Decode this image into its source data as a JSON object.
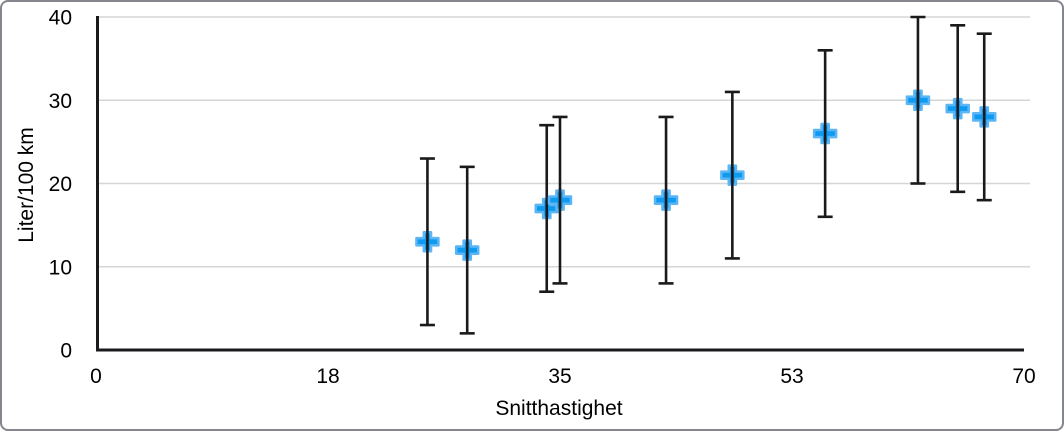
{
  "figure": {
    "background": "#ffffff",
    "border_color": "#85858d"
  },
  "chart_data": {
    "type": "scatter",
    "title": "",
    "xlabel": "Snitthastighet",
    "ylabel": "Liter/100 km",
    "xlim": [
      0,
      70
    ],
    "ylim": [
      0,
      40
    ],
    "x_tick_values": [
      0,
      17.5,
      35,
      52.5,
      70
    ],
    "x_tick_labels": [
      "0",
      "18",
      "35",
      "53",
      "70"
    ],
    "y_tick_values": [
      0,
      10,
      20,
      30,
      40
    ],
    "y_tick_labels": [
      "0",
      "10",
      "20",
      "30",
      "40"
    ],
    "grid": true,
    "legend": "none",
    "colors": {
      "gridline": "#d6d6d6",
      "axis_line": "#1a1a1c",
      "error_bar": "#1a1a1c",
      "marker_fill": "#0f9af1",
      "marker_halo": "#5cb6f5",
      "text": "#000000"
    },
    "series": [
      {
        "name": "Liter/100 km",
        "marker": "plus",
        "error_bars": {
          "type": "fixed",
          "plus": 10,
          "minus": 10
        },
        "points": [
          {
            "x": 25,
            "y": 13
          },
          {
            "x": 28,
            "y": 12
          },
          {
            "x": 34,
            "y": 17
          },
          {
            "x": 35,
            "y": 18
          },
          {
            "x": 43,
            "y": 18
          },
          {
            "x": 48,
            "y": 21
          },
          {
            "x": 55,
            "y": 26
          },
          {
            "x": 62,
            "y": 30
          },
          {
            "x": 65,
            "y": 29
          },
          {
            "x": 67,
            "y": 28
          }
        ]
      }
    ]
  }
}
